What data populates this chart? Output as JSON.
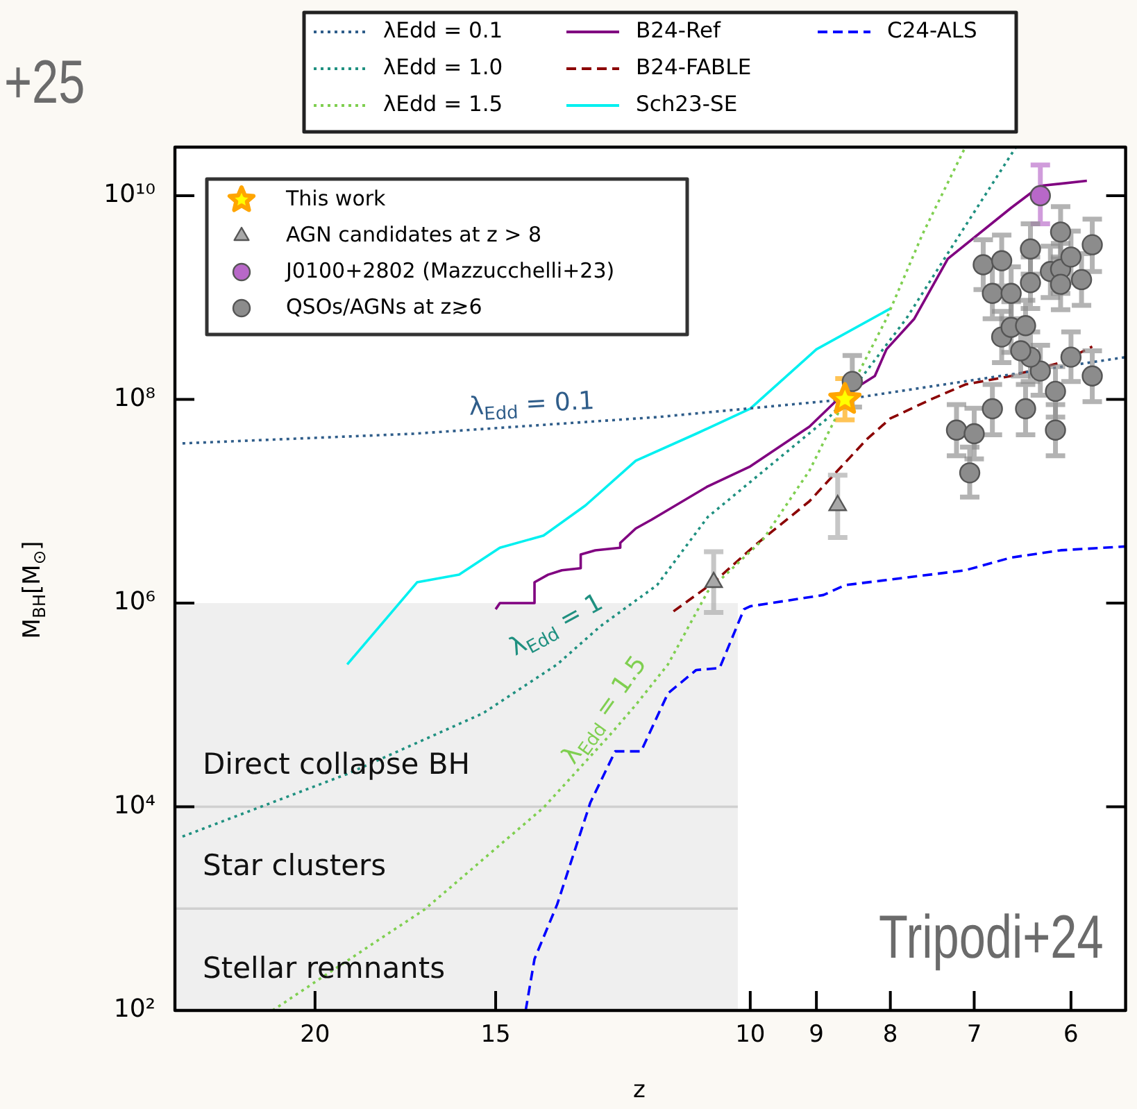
{
  "chart_data": {
    "type": "line",
    "xlabel": "z",
    "ylabel": "M$_{BH}$[M$_{⊙}$]",
    "log": "xy",
    "legend": "top",
    "xlim": [
      25,
      5.5
    ],
    "xticks": [
      20,
      15,
      10,
      9,
      8,
      7,
      6
    ],
    "ylim": [
      100,
      30000000000.0
    ],
    "yticks": [
      {
        "value": 100,
        "label": "10²"
      },
      {
        "value": 10000,
        "label": "10⁴"
      },
      {
        "value": 1000000,
        "label": "10⁶"
      },
      {
        "value": 100000000,
        "label": "10⁸"
      },
      {
        "value": 10000000000,
        "label": "10¹⁰"
      }
    ],
    "series": [
      {
        "name": "λEdd = 0.1",
        "line_style": "dotted",
        "color": "#2f5d8a",
        "x": [
          24.7,
          17.1,
          11.6,
          8.6,
          5.5
        ],
        "values": [
          37000000.0,
          46000000.0,
          67000000.0,
          100000000.0,
          260000000.0
        ]
      },
      {
        "name": "λEdd = 1.0",
        "line_style": "dotted",
        "color": "#1f9080",
        "x": [
          24.7,
          19.0,
          15.3,
          13.6,
          12.7,
          11.6,
          10.7,
          8.8,
          8.6,
          7.8,
          7.2,
          6.55
        ],
        "values": [
          5100.0,
          21000.0,
          83000.0,
          250000.0,
          590000.0,
          1500000.0,
          7000000.0,
          69000000.0,
          100000000.0,
          620000000.0,
          3700000000.0,
          30000000000.0
        ]
      },
      {
        "name": "λEdd = 1.5",
        "line_style": "dotted",
        "color": "#7fcf50",
        "x": [
          21.4,
          20.0,
          16.8,
          13.9,
          12.5,
          12.0,
          11.4,
          10.7,
          9.8,
          9.1,
          8.6,
          8.05,
          7.6,
          7.1
        ],
        "values": [
          100,
          190,
          980,
          9800.0,
          51000.0,
          100000.0,
          250000.0,
          1300000.0,
          4200000.0,
          20000000.0,
          100000000.0,
          620000000.0,
          4200000000.0,
          30000000000.0
        ]
      },
      {
        "name": "B24-Ref",
        "type": "line",
        "line_style": "solid",
        "color": "#800080",
        "x": [
          15.0,
          14.9,
          14.1,
          14.1,
          13.8,
          13.5,
          13.1,
          13.1,
          12.8,
          12.3,
          12.3,
          12.0,
          11.7,
          10.7,
          10.0,
          9.1,
          8.7,
          8.2,
          8.05,
          7.7,
          7.3,
          6.6,
          6.3,
          5.85
        ],
        "values": [
          870000.0,
          1000000.0,
          1000000.0,
          1600000.0,
          1900000.0,
          2100000.0,
          2200000.0,
          3000000.0,
          3300000.0,
          3500000.0,
          3900000.0,
          5400000.0,
          6600000.0,
          14000000.0,
          22000000.0,
          54000000.0,
          100000000.0,
          170000000.0,
          310000000.0,
          620000000.0,
          2400000000.0,
          7600000000.0,
          12500000000.0,
          14000000000.0
        ]
      },
      {
        "name": "B24-FABLE",
        "type": "line",
        "line_style": "dashed",
        "color": "#8b0000",
        "x": [
          11.3,
          10.6,
          9.9,
          9.1,
          8.7,
          8.3,
          8.0,
          7.5,
          7.1,
          6.6,
          6.1,
          5.8
        ],
        "values": [
          830000.0,
          1600000.0,
          3800000.0,
          10000000.0,
          20000000.0,
          41000000.0,
          65000000.0,
          100000000.0,
          140000000.0,
          170000000.0,
          230000000.0,
          330000000.0
        ]
      },
      {
        "name": "Sch23-SE",
        "type": "line",
        "line_style": "solid",
        "color": "#00f0f0",
        "x": [
          19.0,
          17.0,
          15.9,
          14.9,
          13.9,
          13.0,
          12.0,
          10.9,
          10.0,
          9.0,
          8.0
        ],
        "values": [
          250000.0,
          1600000.0,
          1900000.0,
          3500000.0,
          4600000.0,
          9100000.0,
          25000000.0,
          46000000.0,
          81000000.0,
          310000000.0,
          780000000.0
        ]
      },
      {
        "name": "C24-ALS",
        "type": "line",
        "line_style": "dashed",
        "color": "#0000ff",
        "x": [
          14.3,
          14.1,
          13.6,
          12.9,
          12.4,
          11.9,
          11.4,
          10.9,
          10.5,
          10.1,
          10.0,
          8.9,
          8.6,
          7.1,
          6.6,
          6.1,
          5.5
        ],
        "values": [
          100,
          320,
          1100.0,
          11000.0,
          35000.0,
          35000.0,
          130000.0,
          220000.0,
          230000.0,
          870000.0,
          930000.0,
          1200000.0,
          1500000.0,
          2100000.0,
          2800000.0,
          3300000.0,
          3600000.0
        ]
      },
      {
        "type": "area",
        "color": "#efefef",
        "x": [
          25,
          10.2
        ],
        "values": [
          1000000.0,
          1000000.0
        ]
      },
      {
        "type": "line",
        "line_style": "solid",
        "color": "#d0d0d0",
        "x": [
          25,
          10.2
        ],
        "values": [
          10000.0,
          10000.0
        ]
      },
      {
        "type": "line",
        "line_style": "solid",
        "color": "#d0d0d0",
        "x": [
          25,
          10.2
        ],
        "values": [
          1000.0,
          1000.0
        ]
      },
      {
        "name": "This work",
        "type": "scatter",
        "marker": "star",
        "color": "#ffa500",
        "x": [
          8.6
        ],
        "values": [
          100000000.0
        ],
        "errors": [
          [
            63000000.0,
            160000000.0
          ]
        ]
      },
      {
        "name": "AGN candidates at z > 8",
        "type": "scatter",
        "marker": "triangle",
        "color": "#a8a8a8",
        "x": [
          8.7,
          10.6
        ],
        "values": [
          9100000.0,
          1600000.0
        ],
        "errors": [
          [
            4400000.0,
            18000000.0
          ],
          [
            810000.0,
            3200000.0
          ]
        ]
      },
      {
        "name": "J0100+2802 (Mazzucchelli+23)",
        "type": "scatter",
        "marker": "circle",
        "color": "#b868c8",
        "x": [
          6.3
        ],
        "values": [
          10000000000.0
        ],
        "errors": [
          [
            5300000000.0,
            20000000000.0
          ]
        ]
      },
      {
        "name": "QSOs/AGNs at z≳6",
        "type": "scatter",
        "marker": "circle",
        "color": "#8c8c8c",
        "x": [
          8.5,
          7.2,
          7.0,
          7.05,
          6.8,
          6.45,
          6.15,
          6.15,
          6.0,
          5.8,
          6.3,
          6.4,
          6.5,
          6.7,
          6.6,
          6.45,
          6.9,
          6.7,
          6.4,
          6.1,
          5.8,
          6.8,
          6.6,
          6.4,
          6.2,
          6.1,
          6.0,
          6.1,
          5.9
        ],
        "values": [
          150000000.0,
          50000000.0,
          46000000.0,
          19000000.0,
          81000000.0,
          81000000.0,
          50000000.0,
          120000000.0,
          260000000.0,
          170000000.0,
          190000000.0,
          260000000.0,
          300000000.0,
          410000000.0,
          510000000.0,
          530000000.0,
          2100000000.0,
          2300000000.0,
          3000000000.0,
          4400000000.0,
          3300000000.0,
          1100000000.0,
          1100000000.0,
          1400000000.0,
          1800000000.0,
          1900000000.0,
          2500000000.0,
          1350000000.0,
          1500000000.0
        ],
        "errors": [
          [
            84000000.0,
            270000000.0
          ],
          [
            28000000.0,
            89000000.0
          ],
          [
            26000000.0,
            82000000.0
          ],
          [
            11000000.0,
            34000000.0
          ],
          [
            45000000.0,
            140000000.0
          ],
          [
            45000000.0,
            140000000.0
          ],
          [
            28000000.0,
            89000000.0
          ],
          [
            67000000.0,
            210000000.0
          ],
          [
            150000000.0,
            460000000.0
          ],
          [
            95000000.0,
            300000000.0
          ],
          [
            110000000.0,
            340000000.0
          ],
          [
            150000000.0,
            460000000.0
          ],
          [
            170000000.0,
            530000000.0
          ],
          [
            230000000.0,
            730000000.0
          ],
          [
            290000000.0,
            910000000.0
          ],
          [
            300000000.0,
            940000000.0
          ],
          [
            1200000000.0,
            3700000000.0
          ],
          [
            1300000000.0,
            4100000000.0
          ],
          [
            1700000000.0,
            5300000000.0
          ],
          [
            2500000000.0,
            7800000000.0
          ],
          [
            1800000000.0,
            5900000000.0
          ],
          [
            620000000.0,
            2000000000.0
          ],
          [
            620000000.0,
            2000000000.0
          ],
          [
            780000000.0,
            2500000000.0
          ],
          [
            1000000000.0,
            3200000000.0
          ],
          [
            1100000000.0,
            3400000000.0
          ],
          [
            1400000000.0,
            4500000000.0
          ],
          [
            760000000.0,
            2400000000.0
          ],
          [
            840000000.0,
            2700000000.0
          ]
        ]
      }
    ],
    "annotations": [
      "λ$_{Edd}$ = 0.1",
      "λ$_{Edd}$ = 1",
      "λ$_{Edd}$ = 1.5",
      "Direct collapse BH",
      "Star clusters",
      "Stellar remnants",
      "Tripodi+24",
      "+25"
    ]
  }
}
